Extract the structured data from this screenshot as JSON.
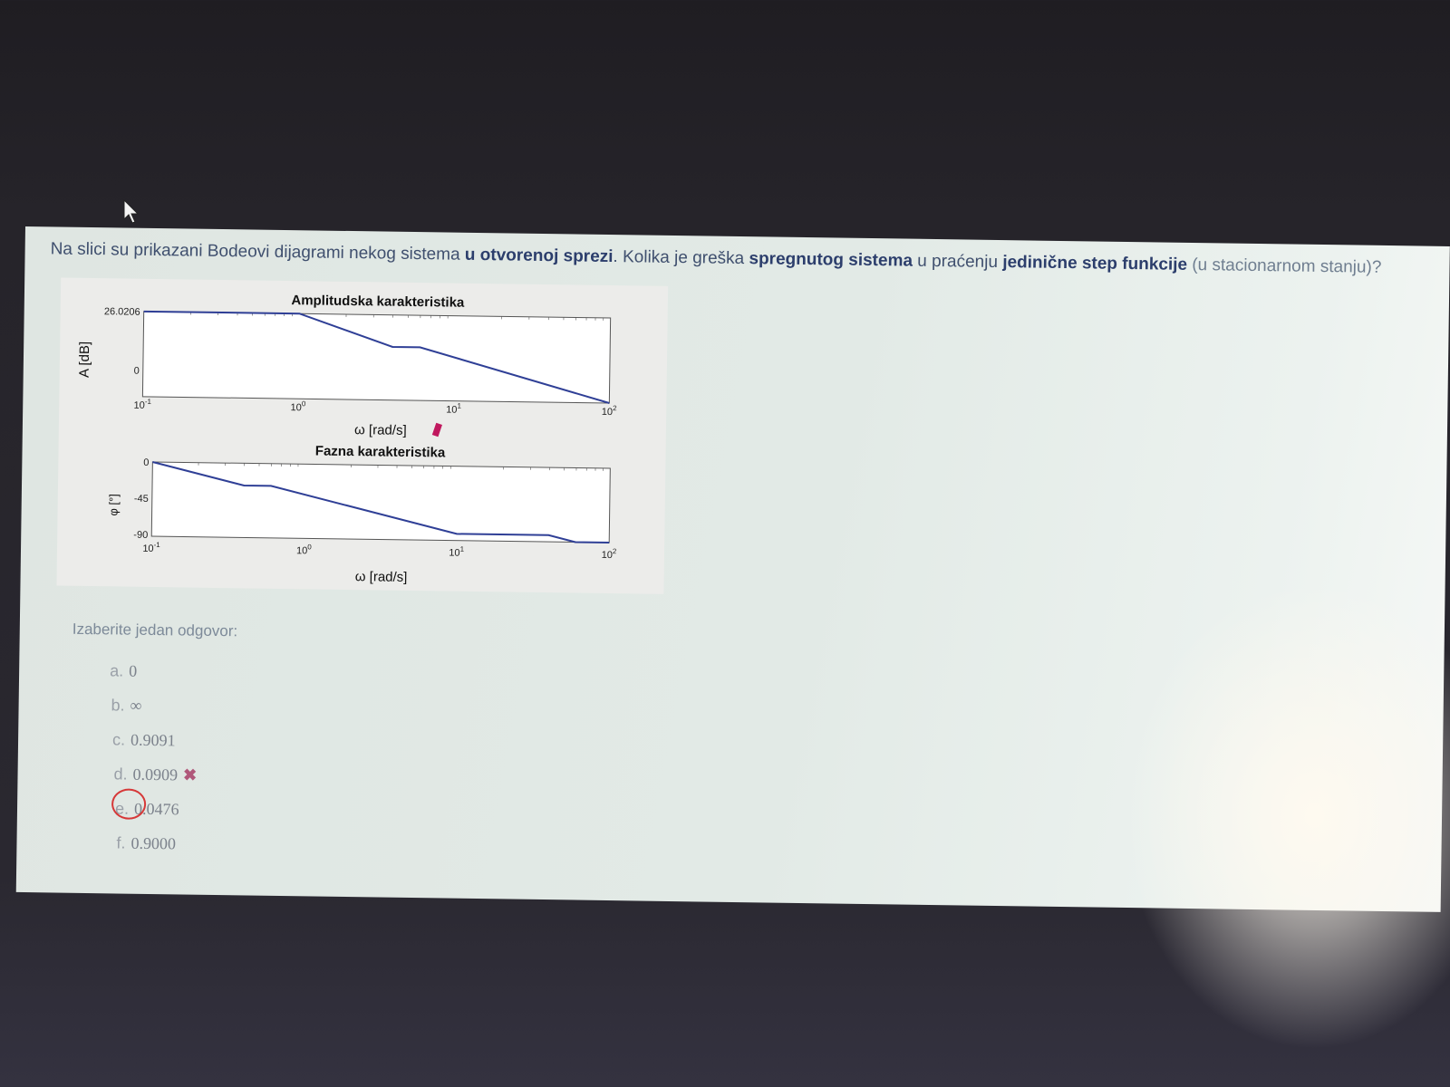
{
  "question": {
    "part1": "Na slici su prikazani Bodeovi dijagrami nekog sistema ",
    "bold1": "u otvorenoj sprezi",
    "part2": ".  Kolika je greška ",
    "bold2": "spregnutog sistema",
    "part3": " u praćenju ",
    "bold3": "jedinične step funkcije",
    "part4": " (u stacionarnom stanju)?"
  },
  "figure": {
    "amp_title": "Amplitudska karakteristika",
    "amp_ylabel": "A [dB]",
    "amp_xlabel": "ω [rad/s]",
    "amp_yticks": [
      "26.0206",
      "0"
    ],
    "phase_title": "Fazna karakteristika",
    "phase_ylabel": "φ [°]",
    "phase_xlabel": "ω [rad/s]",
    "phase_yticks": [
      "0",
      "-45",
      "-90"
    ],
    "xticks": [
      "10",
      "10",
      "10",
      "10"
    ],
    "xtick_exps": [
      "-1",
      "0",
      "1",
      "2"
    ],
    "line_color": "#2f3f96"
  },
  "chart_data": [
    {
      "type": "line",
      "title": "Amplitudska karakteristika",
      "xlabel": "ω [rad/s]",
      "ylabel": "A [dB]",
      "xscale": "log",
      "xlim": [
        0.1,
        100
      ],
      "ylim": [
        -6,
        26.0206
      ],
      "x": [
        0.1,
        1,
        4,
        6,
        100
      ],
      "y": [
        26.0206,
        26.0206,
        14,
        14,
        -6
      ]
    },
    {
      "type": "line",
      "title": "Fazna karakteristika",
      "xlabel": "ω [rad/s]",
      "ylabel": "φ [°]",
      "xscale": "log",
      "xlim": [
        0.1,
        100
      ],
      "ylim": [
        -90,
        0
      ],
      "x": [
        0.1,
        0.4,
        0.6,
        10,
        40,
        60,
        100
      ],
      "y": [
        0,
        -27,
        -27,
        -82,
        -82,
        -90,
        -90
      ]
    }
  ],
  "answers": {
    "prompt": "Izaberite jedan odgovor:",
    "options": [
      {
        "letter": "a.",
        "value": "0"
      },
      {
        "letter": "b.",
        "value": "∞"
      },
      {
        "letter": "c.",
        "value": "0.9091"
      },
      {
        "letter": "d.",
        "value": "0.0909"
      },
      {
        "letter": "e.",
        "value": "0.0476"
      },
      {
        "letter": "f.",
        "value": "0.9000"
      }
    ],
    "wrong_mark": "✖"
  }
}
